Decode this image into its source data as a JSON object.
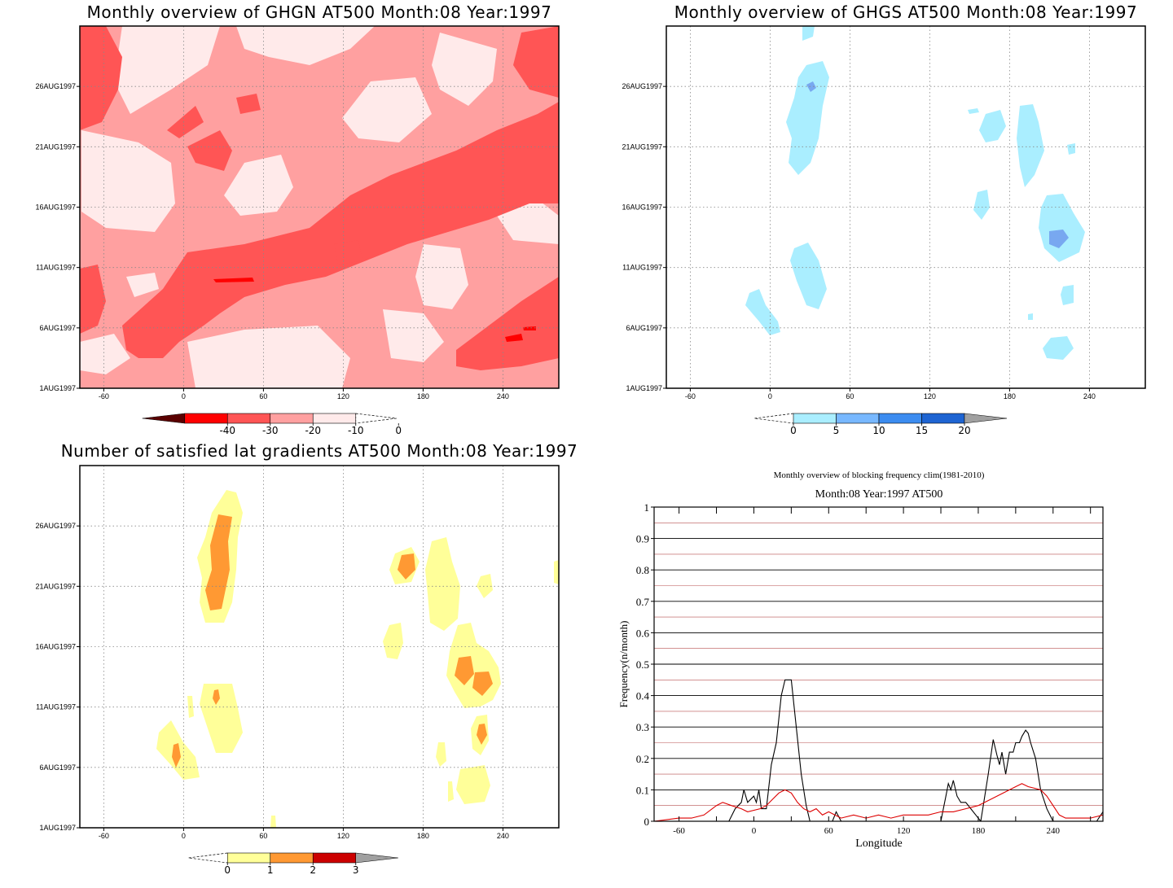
{
  "panels": [
    {
      "title": "Monthly overview of GHGN AT500 Month:08 Year:1997",
      "x_ticks": [
        "-60",
        "0",
        "60",
        "120",
        "180",
        "240"
      ],
      "y_ticks": [
        "1AUG1997",
        "6AUG1997",
        "11AUG1997",
        "16AUG1997",
        "21AUG1997",
        "26AUG1997"
      ],
      "colorbar": {
        "ticks": [
          "-40",
          "-30",
          "-20",
          "-10",
          "0"
        ],
        "colors": [
          "#5a0000",
          "#ff0000",
          "#ff5555",
          "#ffa0a0",
          "#ffeaea"
        ]
      },
      "colors": {
        "background": "#ffeaea",
        "mid": "#ffa0a0",
        "strong": "#ff5555",
        "deep": "#ff0000"
      }
    },
    {
      "title": "Monthly overview of GHGS AT500 Month:08 Year:1997",
      "x_ticks": [
        "-60",
        "0",
        "60",
        "120",
        "180",
        "240"
      ],
      "y_ticks": [
        "1AUG1997",
        "6AUG1997",
        "11AUG1997",
        "16AUG1997",
        "21AUG1997",
        "26AUG1997"
      ],
      "colorbar": {
        "ticks": [
          "0",
          "5",
          "10",
          "15",
          "20"
        ],
        "colors": [
          "#aaeeff",
          "#78b8ff",
          "#3c8cf0",
          "#1e64d2"
        ]
      },
      "colors": {
        "light": "#aaeeff",
        "mid": "#78a8f0"
      }
    },
    {
      "title": "Number of satisfied lat gradients AT500 Month:08 Year:1997",
      "x_ticks": [
        "-60",
        "0",
        "60",
        "120",
        "180",
        "240"
      ],
      "y_ticks": [
        "1AUG1997",
        "6AUG1997",
        "11AUG1997",
        "16AUG1997",
        "21AUG1997",
        "26AUG1997"
      ],
      "colorbar": {
        "ticks": [
          "0",
          "1",
          "2",
          "3"
        ],
        "colors": [
          "#ffff99",
          "#ff9933",
          "#cc0000"
        ]
      },
      "colors": {
        "light": "#ffff99",
        "mid": "#ff9933"
      }
    }
  ],
  "chart_data": [
    {
      "type": "heatmap",
      "title": "Monthly overview of GHGN AT500 Month:08 Year:1997",
      "xlim": [
        -78,
        282
      ],
      "x_ticks": [
        -60,
        0,
        60,
        120,
        180,
        240
      ],
      "y_ticks": [
        "1AUG1997",
        "6AUG1997",
        "11AUG1997",
        "16AUG1997",
        "21AUG1997",
        "26AUG1997"
      ],
      "levels": [
        -40,
        -30,
        -20,
        -10,
        0
      ]
    },
    {
      "type": "heatmap",
      "title": "Monthly overview of GHGS AT500 Month:08 Year:1997",
      "xlim": [
        -78,
        282
      ],
      "x_ticks": [
        -60,
        0,
        60,
        120,
        180,
        240
      ],
      "y_ticks": [
        "1AUG1997",
        "6AUG1997",
        "11AUG1997",
        "16AUG1997",
        "21AUG1997",
        "26AUG1997"
      ],
      "levels": [
        0,
        5,
        10,
        15,
        20
      ]
    },
    {
      "type": "heatmap",
      "title": "Number of satisfied lat gradients AT500 Month:08 Year:1997",
      "xlim": [
        -78,
        282
      ],
      "x_ticks": [
        -60,
        0,
        60,
        120,
        180,
        240
      ],
      "y_ticks": [
        "1AUG1997",
        "6AUG1997",
        "11AUG1997",
        "16AUG1997",
        "21AUG1997",
        "26AUG1997"
      ],
      "levels": [
        0,
        1,
        2,
        3
      ]
    },
    {
      "type": "line",
      "title": "Monthly overview of blocking frequency clim(1981-2010)",
      "subtitle": "Month:08 Year:1997  AT500",
      "xlabel": "Longitude",
      "ylabel": "Frequency(n/month)",
      "xlim": [
        -80,
        280
      ],
      "ylim": [
        0,
        1
      ],
      "x_ticks": [
        -60,
        0,
        60,
        120,
        180,
        240
      ],
      "y_ticks": [
        "0",
        "0.1",
        "0.2",
        "0.3",
        "0.4",
        "0.5",
        "0.6",
        "0.7",
        "0.8",
        "0.9",
        "1"
      ],
      "series": [
        {
          "color": "#000000",
          "points": [
            [
              -80,
              0
            ],
            [
              -30,
              0
            ],
            [
              -20,
              0
            ],
            [
              -15,
              0.04
            ],
            [
              -10,
              0.06
            ],
            [
              -8,
              0.1
            ],
            [
              -5,
              0.06
            ],
            [
              0,
              0.08
            ],
            [
              2,
              0.06
            ],
            [
              4,
              0.1
            ],
            [
              6,
              0.04
            ],
            [
              10,
              0.04
            ],
            [
              14,
              0.18
            ],
            [
              18,
              0.25
            ],
            [
              22,
              0.4
            ],
            [
              25,
              0.45
            ],
            [
              30,
              0.45
            ],
            [
              34,
              0.3
            ],
            [
              38,
              0.15
            ],
            [
              42,
              0.05
            ],
            [
              45,
              0
            ],
            [
              63,
              0
            ],
            [
              66,
              0.03
            ],
            [
              70,
              0
            ],
            [
              150,
              0
            ],
            [
              154,
              0.08
            ],
            [
              156,
              0.12
            ],
            [
              158,
              0.1
            ],
            [
              160,
              0.13
            ],
            [
              163,
              0.08
            ],
            [
              166,
              0.06
            ],
            [
              170,
              0.06
            ],
            [
              174,
              0.04
            ],
            [
              178,
              0.02
            ],
            [
              182,
              0
            ],
            [
              184,
              0.05
            ],
            [
              188,
              0.15
            ],
            [
              192,
              0.26
            ],
            [
              195,
              0.21
            ],
            [
              197,
              0.18
            ],
            [
              199,
              0.22
            ],
            [
              202,
              0.15
            ],
            [
              205,
              0.22
            ],
            [
              208,
              0.22
            ],
            [
              210,
              0.25
            ],
            [
              213,
              0.25
            ],
            [
              215,
              0.27
            ],
            [
              218,
              0.29
            ],
            [
              220,
              0.28
            ],
            [
              222,
              0.25
            ],
            [
              226,
              0.2
            ],
            [
              230,
              0.1
            ],
            [
              235,
              0.04
            ],
            [
              240,
              0
            ],
            [
              275,
              0
            ],
            [
              280,
              0.03
            ]
          ]
        },
        {
          "color": "#dd0000",
          "points": [
            [
              -80,
              0
            ],
            [
              -60,
              0.01
            ],
            [
              -50,
              0.01
            ],
            [
              -40,
              0.02
            ],
            [
              -30,
              0.05
            ],
            [
              -25,
              0.06
            ],
            [
              -18,
              0.05
            ],
            [
              -10,
              0.04
            ],
            [
              -5,
              0.03
            ],
            [
              5,
              0.04
            ],
            [
              10,
              0.05
            ],
            [
              15,
              0.07
            ],
            [
              20,
              0.09
            ],
            [
              25,
              0.1
            ],
            [
              30,
              0.09
            ],
            [
              35,
              0.06
            ],
            [
              40,
              0.04
            ],
            [
              45,
              0.03
            ],
            [
              50,
              0.04
            ],
            [
              55,
              0.02
            ],
            [
              60,
              0.03
            ],
            [
              65,
              0.02
            ],
            [
              70,
              0.01
            ],
            [
              80,
              0.02
            ],
            [
              90,
              0.01
            ],
            [
              100,
              0.02
            ],
            [
              110,
              0.01
            ],
            [
              120,
              0.02
            ],
            [
              130,
              0.02
            ],
            [
              140,
              0.02
            ],
            [
              150,
              0.03
            ],
            [
              160,
              0.03
            ],
            [
              170,
              0.04
            ],
            [
              180,
              0.05
            ],
            [
              190,
              0.07
            ],
            [
              200,
              0.09
            ],
            [
              210,
              0.11
            ],
            [
              215,
              0.12
            ],
            [
              220,
              0.11
            ],
            [
              230,
              0.1
            ],
            [
              235,
              0.08
            ],
            [
              240,
              0.05
            ],
            [
              245,
              0.02
            ],
            [
              250,
              0.01
            ],
            [
              270,
              0.01
            ],
            [
              280,
              0.02
            ]
          ]
        }
      ]
    }
  ]
}
